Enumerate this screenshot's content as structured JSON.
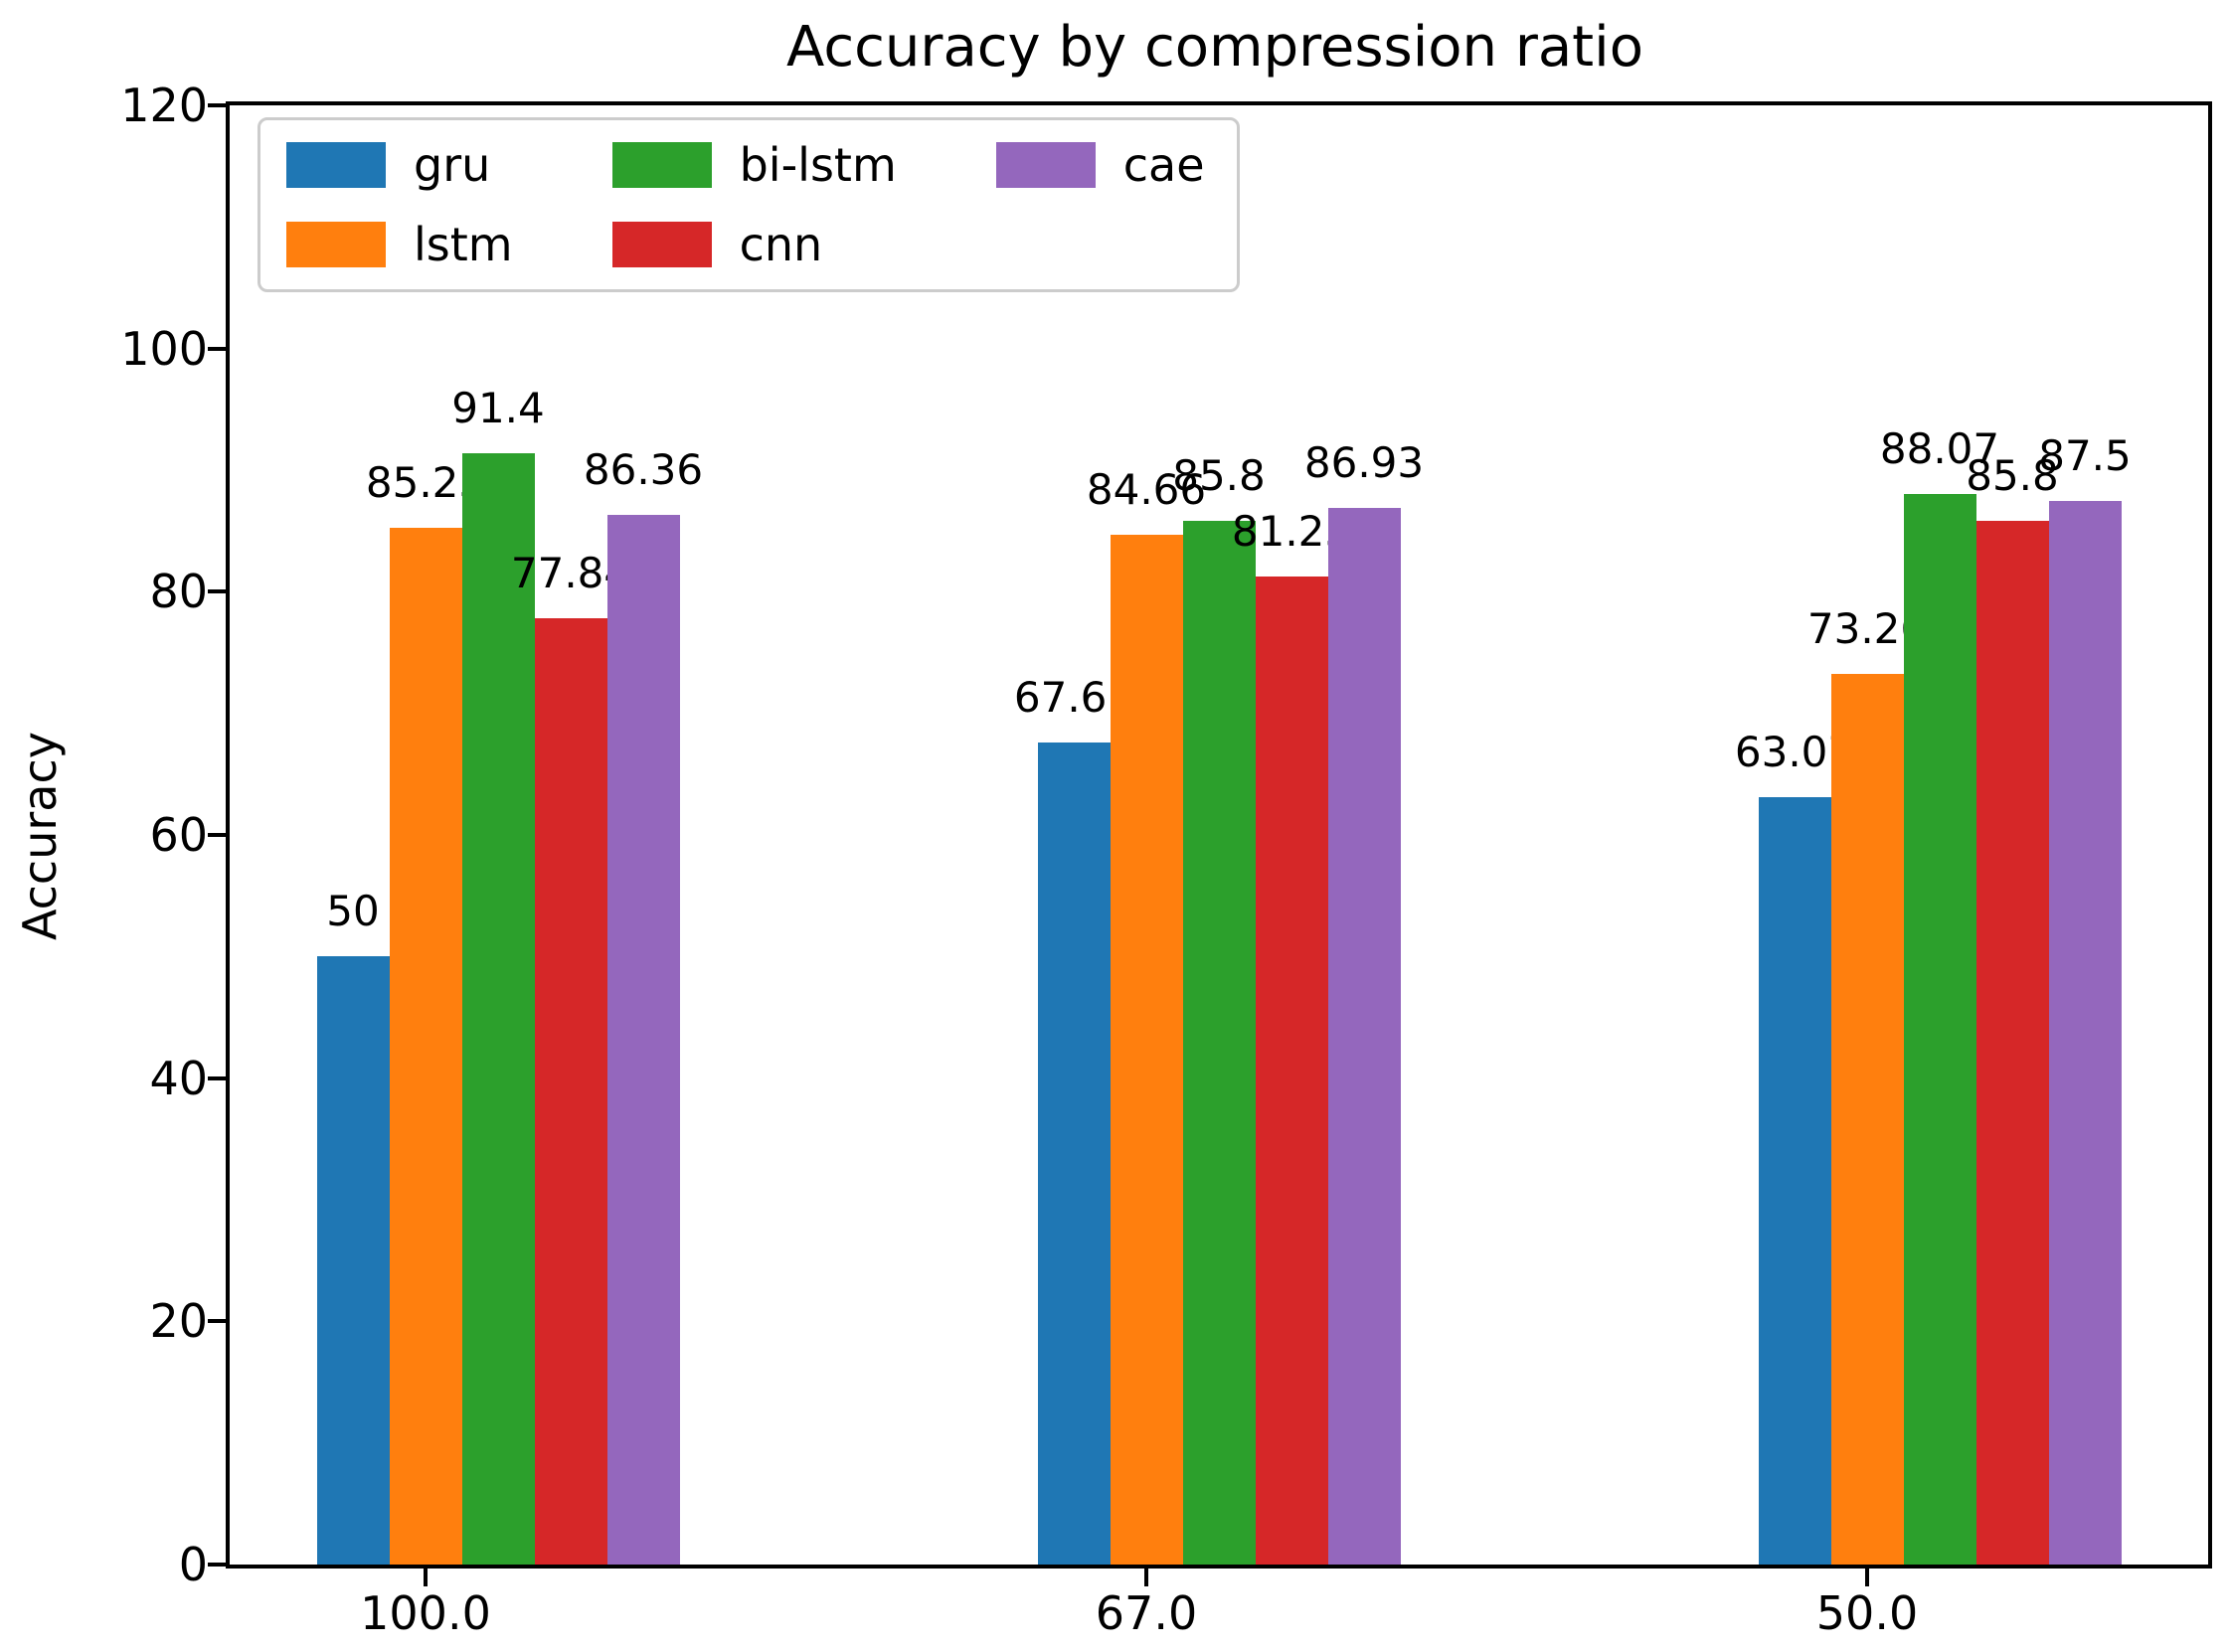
{
  "title": "Accuracy by compression ratio",
  "chart_data": {
    "type": "bar",
    "title": "Accuracy by compression ratio",
    "xlabel": "",
    "ylabel": "Accuracy",
    "categories": [
      "100.0",
      "67.0",
      "50.0"
    ],
    "series": [
      {
        "name": "gru",
        "color": "#1f77b4",
        "values": [
          50,
          67.61,
          63.07
        ],
        "labels": [
          "50",
          "67.61",
          "63.07"
        ]
      },
      {
        "name": "lstm",
        "color": "#ff7f0e",
        "values": [
          85.23,
          84.66,
          73.26
        ],
        "labels": [
          "85.23",
          "84.66",
          "73.26"
        ]
      },
      {
        "name": "bi-lstm",
        "color": "#2ca02c",
        "values": [
          91.4,
          85.8,
          88.07
        ],
        "labels": [
          "91.4",
          "85.8",
          "88.07"
        ]
      },
      {
        "name": "cnn",
        "color": "#d62728",
        "values": [
          77.84,
          81.25,
          85.8
        ],
        "labels": [
          "77.84",
          "81.25",
          "85.8"
        ]
      },
      {
        "name": "cae",
        "color": "#9467bd",
        "values": [
          86.36,
          86.93,
          87.5
        ],
        "labels": [
          "86.36",
          "86.93",
          "87.5"
        ]
      }
    ],
    "ylim": [
      0,
      120
    ],
    "yticks": [
      "0",
      "20",
      "40",
      "60",
      "80",
      "100",
      "120"
    ],
    "legend": {
      "position": "upper-left",
      "ncol": 3,
      "order": "column-major"
    },
    "grid": false
  }
}
